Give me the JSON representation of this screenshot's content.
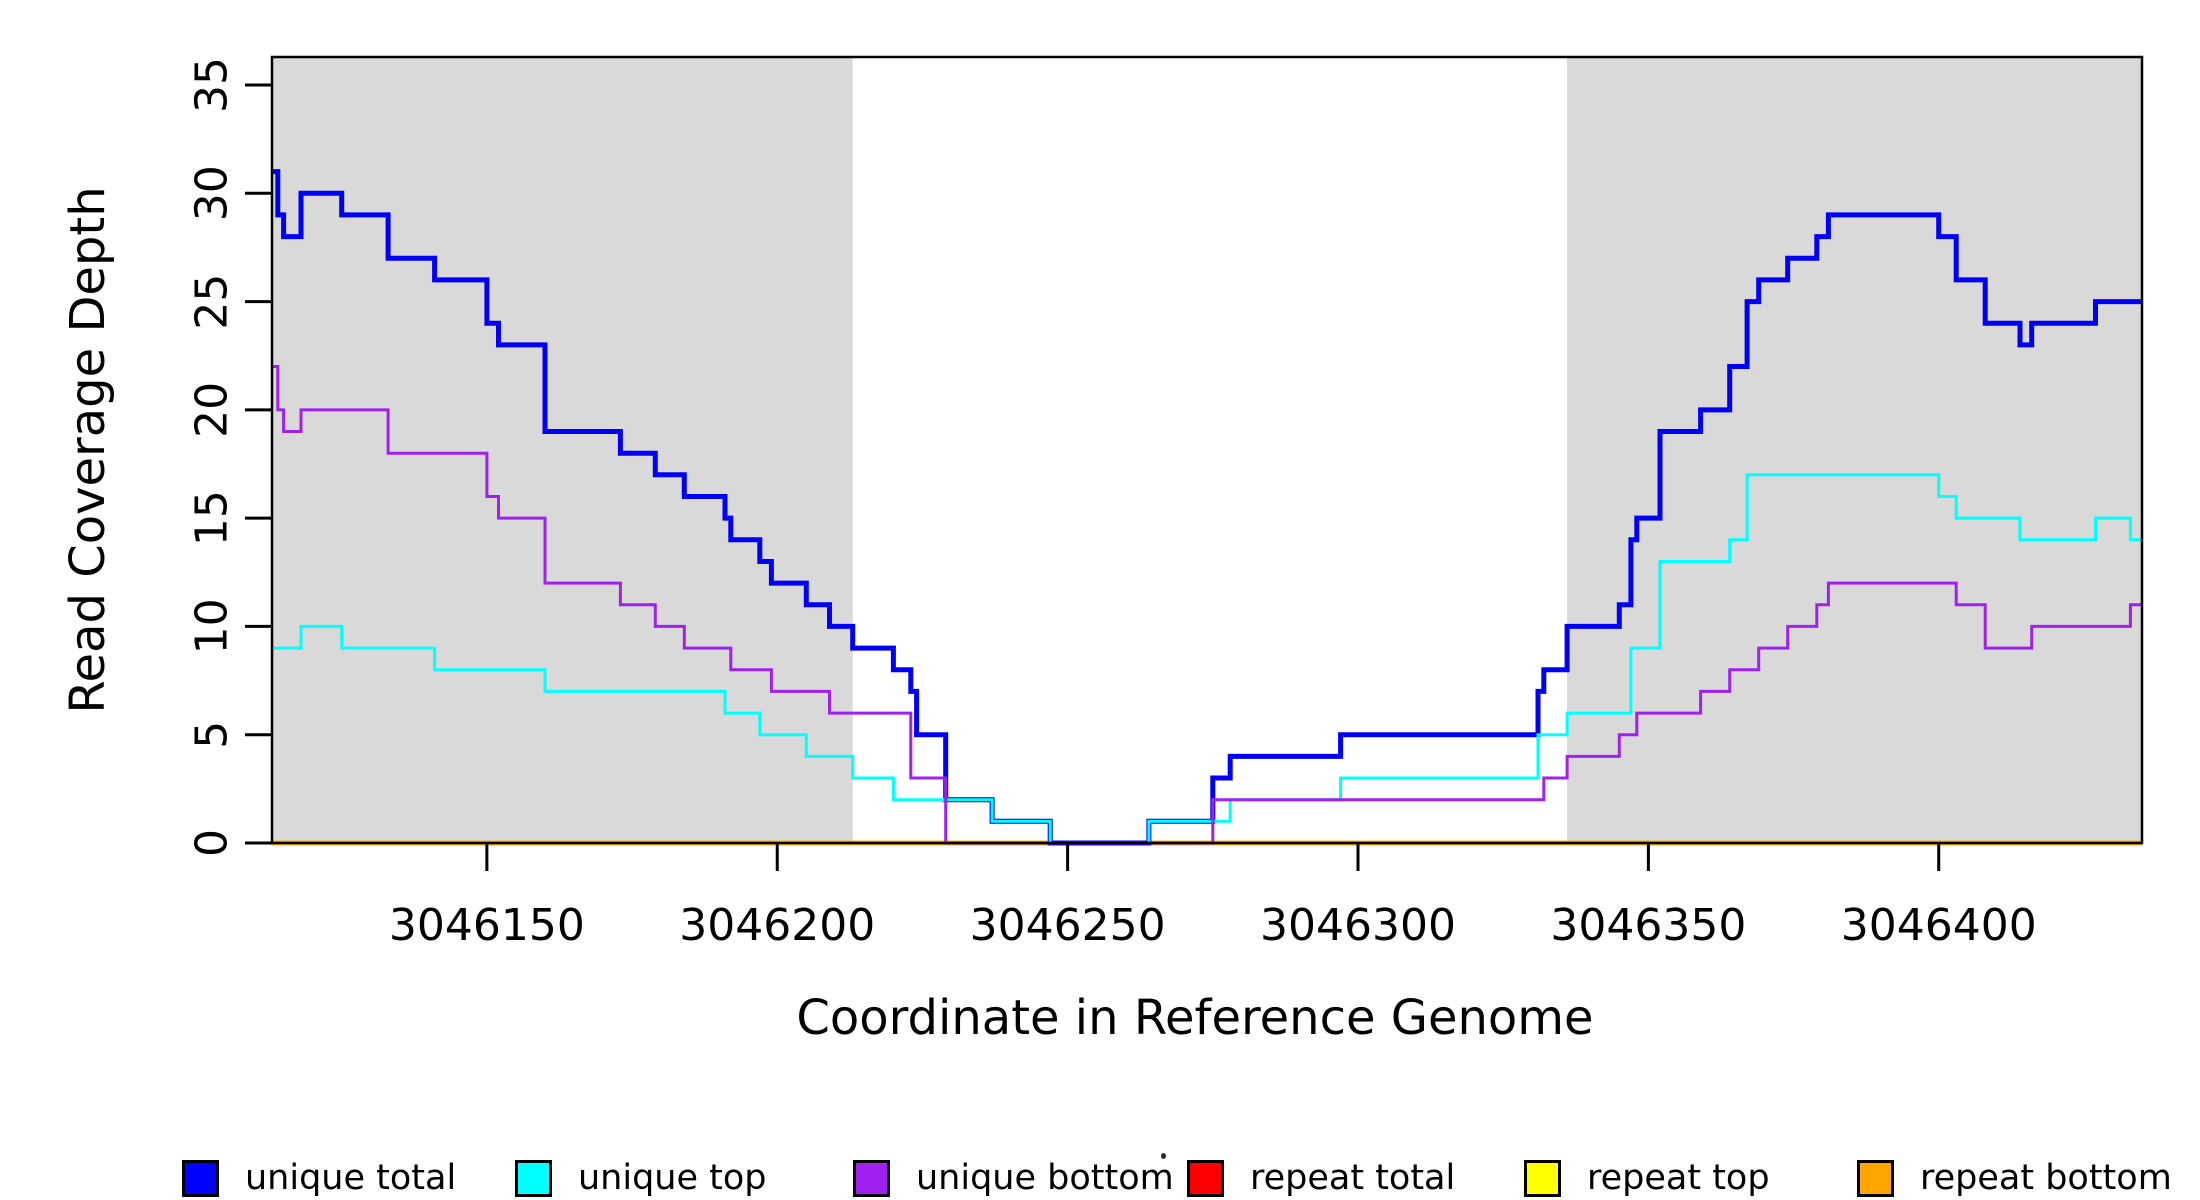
{
  "chart_data": {
    "type": "line",
    "subtype": "step",
    "title": "",
    "xlabel": "Coordinate in Reference Genome",
    "ylabel": "Read Coverage Depth",
    "xlim": [
      3046113,
      3046435
    ],
    "ylim": [
      0,
      36.3
    ],
    "x_ticks": [
      "3046150",
      "3046200",
      "3046250",
      "3046300",
      "3046350",
      "3046400"
    ],
    "x_tick_values": [
      3046150,
      3046200,
      3046250,
      3046300,
      3046350,
      3046400
    ],
    "y_ticks": [
      "0",
      "5",
      "10",
      "15",
      "20",
      "25",
      "30",
      "35"
    ],
    "y_tick_values": [
      0,
      5,
      10,
      15,
      20,
      25,
      30,
      35
    ],
    "grid": "off",
    "legend_position": "bottom",
    "shaded_region_color": "#D9D9D9",
    "shaded_regions": [
      {
        "x0": 3046113,
        "x1": 3046213
      },
      {
        "x0": 3046336,
        "x1": 3046435
      }
    ],
    "series": [
      {
        "name": "repeat total",
        "color": "#FF0000",
        "width": 4.5,
        "steps": [
          [
            3046113,
            0
          ]
        ]
      },
      {
        "name": "repeat top",
        "color": "#FFFF00",
        "width": 4.5,
        "steps": [
          [
            3046113,
            0
          ]
        ]
      },
      {
        "name": "repeat bottom",
        "color": "#FFA500",
        "width": 4.5,
        "steps": [
          [
            3046113,
            0
          ]
        ]
      },
      {
        "name": "unique total",
        "color": "#0000F5",
        "width": 5,
        "steps": [
          [
            3046113,
            31
          ],
          [
            3046114,
            29
          ],
          [
            3046115,
            28
          ],
          [
            3046118,
            30
          ],
          [
            3046125,
            29
          ],
          [
            3046133,
            27
          ],
          [
            3046141,
            26
          ],
          [
            3046150,
            24
          ],
          [
            3046152,
            23
          ],
          [
            3046160,
            19
          ],
          [
            3046173,
            18
          ],
          [
            3046179,
            17
          ],
          [
            3046184,
            16
          ],
          [
            3046191,
            15
          ],
          [
            3046192,
            14
          ],
          [
            3046197,
            13
          ],
          [
            3046199,
            12
          ],
          [
            3046205,
            11
          ],
          [
            3046209,
            10
          ],
          [
            3046213,
            9
          ],
          [
            3046220,
            8
          ],
          [
            3046223,
            7
          ],
          [
            3046224,
            5
          ],
          [
            3046229,
            2
          ],
          [
            3046237,
            1
          ],
          [
            3046247,
            0
          ],
          [
            3046264,
            1
          ],
          [
            3046275,
            3
          ],
          [
            3046278,
            4
          ],
          [
            3046297,
            5
          ],
          [
            3046331,
            7
          ],
          [
            3046332,
            8
          ],
          [
            3046336,
            10
          ],
          [
            3046345,
            11
          ],
          [
            3046347,
            14
          ],
          [
            3046348,
            15
          ],
          [
            3046352,
            19
          ],
          [
            3046359,
            20
          ],
          [
            3046364,
            22
          ],
          [
            3046367,
            25
          ],
          [
            3046369,
            26
          ],
          [
            3046374,
            27
          ],
          [
            3046379,
            28
          ],
          [
            3046381,
            29
          ],
          [
            3046400,
            28
          ],
          [
            3046403,
            26
          ],
          [
            3046408,
            24
          ],
          [
            3046414,
            23
          ],
          [
            3046416,
            24
          ],
          [
            3046427,
            25
          ]
        ]
      },
      {
        "name": "unique top",
        "color": "#00FFFF",
        "width": 3,
        "steps": [
          [
            3046113,
            9
          ],
          [
            3046118,
            10
          ],
          [
            3046125,
            9
          ],
          [
            3046141,
            8
          ],
          [
            3046160,
            7
          ],
          [
            3046191,
            6
          ],
          [
            3046197,
            5
          ],
          [
            3046205,
            4
          ],
          [
            3046213,
            3
          ],
          [
            3046220,
            2
          ],
          [
            3046237,
            1
          ],
          [
            3046247,
            0
          ],
          [
            3046264,
            1
          ],
          [
            3046278,
            2
          ],
          [
            3046297,
            3
          ],
          [
            3046331,
            5
          ],
          [
            3046336,
            6
          ],
          [
            3046347,
            9
          ],
          [
            3046352,
            13
          ],
          [
            3046364,
            14
          ],
          [
            3046367,
            17
          ],
          [
            3046400,
            16
          ],
          [
            3046403,
            15
          ],
          [
            3046414,
            14
          ],
          [
            3046427,
            15
          ],
          [
            3046433,
            14
          ]
        ]
      },
      {
        "name": "unique bottom",
        "color": "#A020F0",
        "width": 3,
        "steps": [
          [
            3046113,
            22
          ],
          [
            3046114,
            20
          ],
          [
            3046115,
            19
          ],
          [
            3046118,
            20
          ],
          [
            3046133,
            18
          ],
          [
            3046150,
            16
          ],
          [
            3046152,
            15
          ],
          [
            3046160,
            12
          ],
          [
            3046173,
            11
          ],
          [
            3046179,
            10
          ],
          [
            3046184,
            9
          ],
          [
            3046192,
            8
          ],
          [
            3046199,
            7
          ],
          [
            3046209,
            6
          ],
          [
            3046223,
            3
          ],
          [
            3046229,
            0
          ],
          [
            3046275,
            2
          ],
          [
            3046332,
            3
          ],
          [
            3046336,
            4
          ],
          [
            3046345,
            5
          ],
          [
            3046348,
            6
          ],
          [
            3046359,
            7
          ],
          [
            3046364,
            8
          ],
          [
            3046369,
            9
          ],
          [
            3046374,
            10
          ],
          [
            3046379,
            11
          ],
          [
            3046381,
            12
          ],
          [
            3046403,
            11
          ],
          [
            3046408,
            9
          ],
          [
            3046416,
            10
          ],
          [
            3046433,
            11
          ]
        ]
      }
    ],
    "legend": [
      {
        "label": "unique total",
        "color": "#0000FF"
      },
      {
        "label": "unique top",
        "color": "#00FFFF"
      },
      {
        "label": "unique bottom",
        "color": "#A020F0"
      },
      {
        "label": "repeat total",
        "color": "#FF0000"
      },
      {
        "label": "repeat top",
        "color": "#FFFF00"
      },
      {
        "label": "repeat bottom",
        "color": "#FFA500"
      }
    ]
  },
  "layout_colors": {
    "axis": "#000000",
    "background": "#FFFFFF"
  }
}
